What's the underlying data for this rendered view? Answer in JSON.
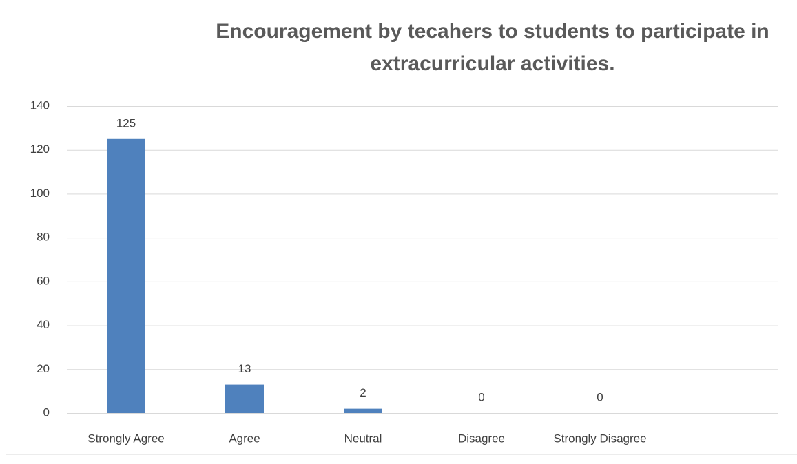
{
  "chart_data": {
    "type": "bar",
    "title": "Encouragement by tecahers to students to participate in extracurricular activities.",
    "categories": [
      "Strongly Agree",
      "Agree",
      "Neutral",
      "Disagree",
      "Strongly Disagree"
    ],
    "values": [
      125,
      13,
      2,
      0,
      0
    ],
    "color": "#4f81bd",
    "ylim": [
      0,
      140
    ],
    "yticks": [
      0,
      20,
      40,
      60,
      80,
      100,
      120,
      140
    ],
    "grid": true
  }
}
